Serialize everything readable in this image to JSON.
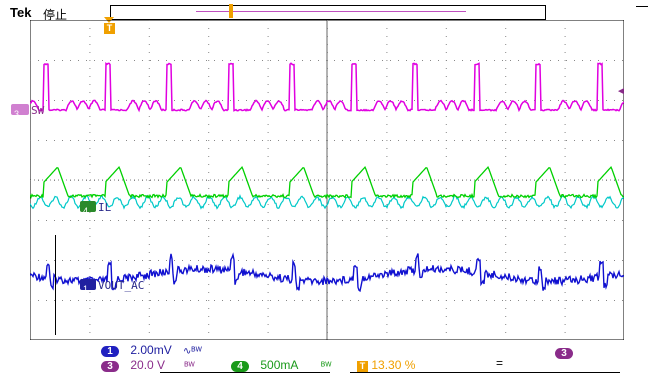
{
  "header": {
    "brand": "Tek",
    "run_state": "停止"
  },
  "trigger": {
    "marker": "T",
    "level_marker": "◄"
  },
  "channels": [
    {
      "id": "3",
      "label": "SW",
      "color": "#e000e0",
      "badge_color": "#8a2c8a"
    },
    {
      "id": "4",
      "label": "IL",
      "color": "#00e000",
      "badge_color": "#2a8a2a"
    },
    {
      "id": "1",
      "label": "VOUT_AC",
      "color": "#1010d0",
      "badge_color": "#2020a0"
    }
  ],
  "readouts": {
    "ch1": {
      "num": "1",
      "scale": "2.00mV",
      "coupling": "∿ᴮᵂ"
    },
    "ch3": {
      "num": "3",
      "scale": "20.0 V",
      "coupling": "ᴮᵂ"
    },
    "ch4": {
      "num": "4",
      "scale": "500mA",
      "coupling": "ᴮᵂ"
    },
    "trigger_pos": {
      "icon": "T",
      "value": "13.30 %"
    },
    "right_badge": "3",
    "equals": "="
  },
  "colors": {
    "ch1": "#1010d0",
    "ch3": "#e000e0",
    "ch4": "#00d000",
    "ch4b": "#00c8c8",
    "trigger": "#f0a000",
    "grid": "#000000"
  }
}
